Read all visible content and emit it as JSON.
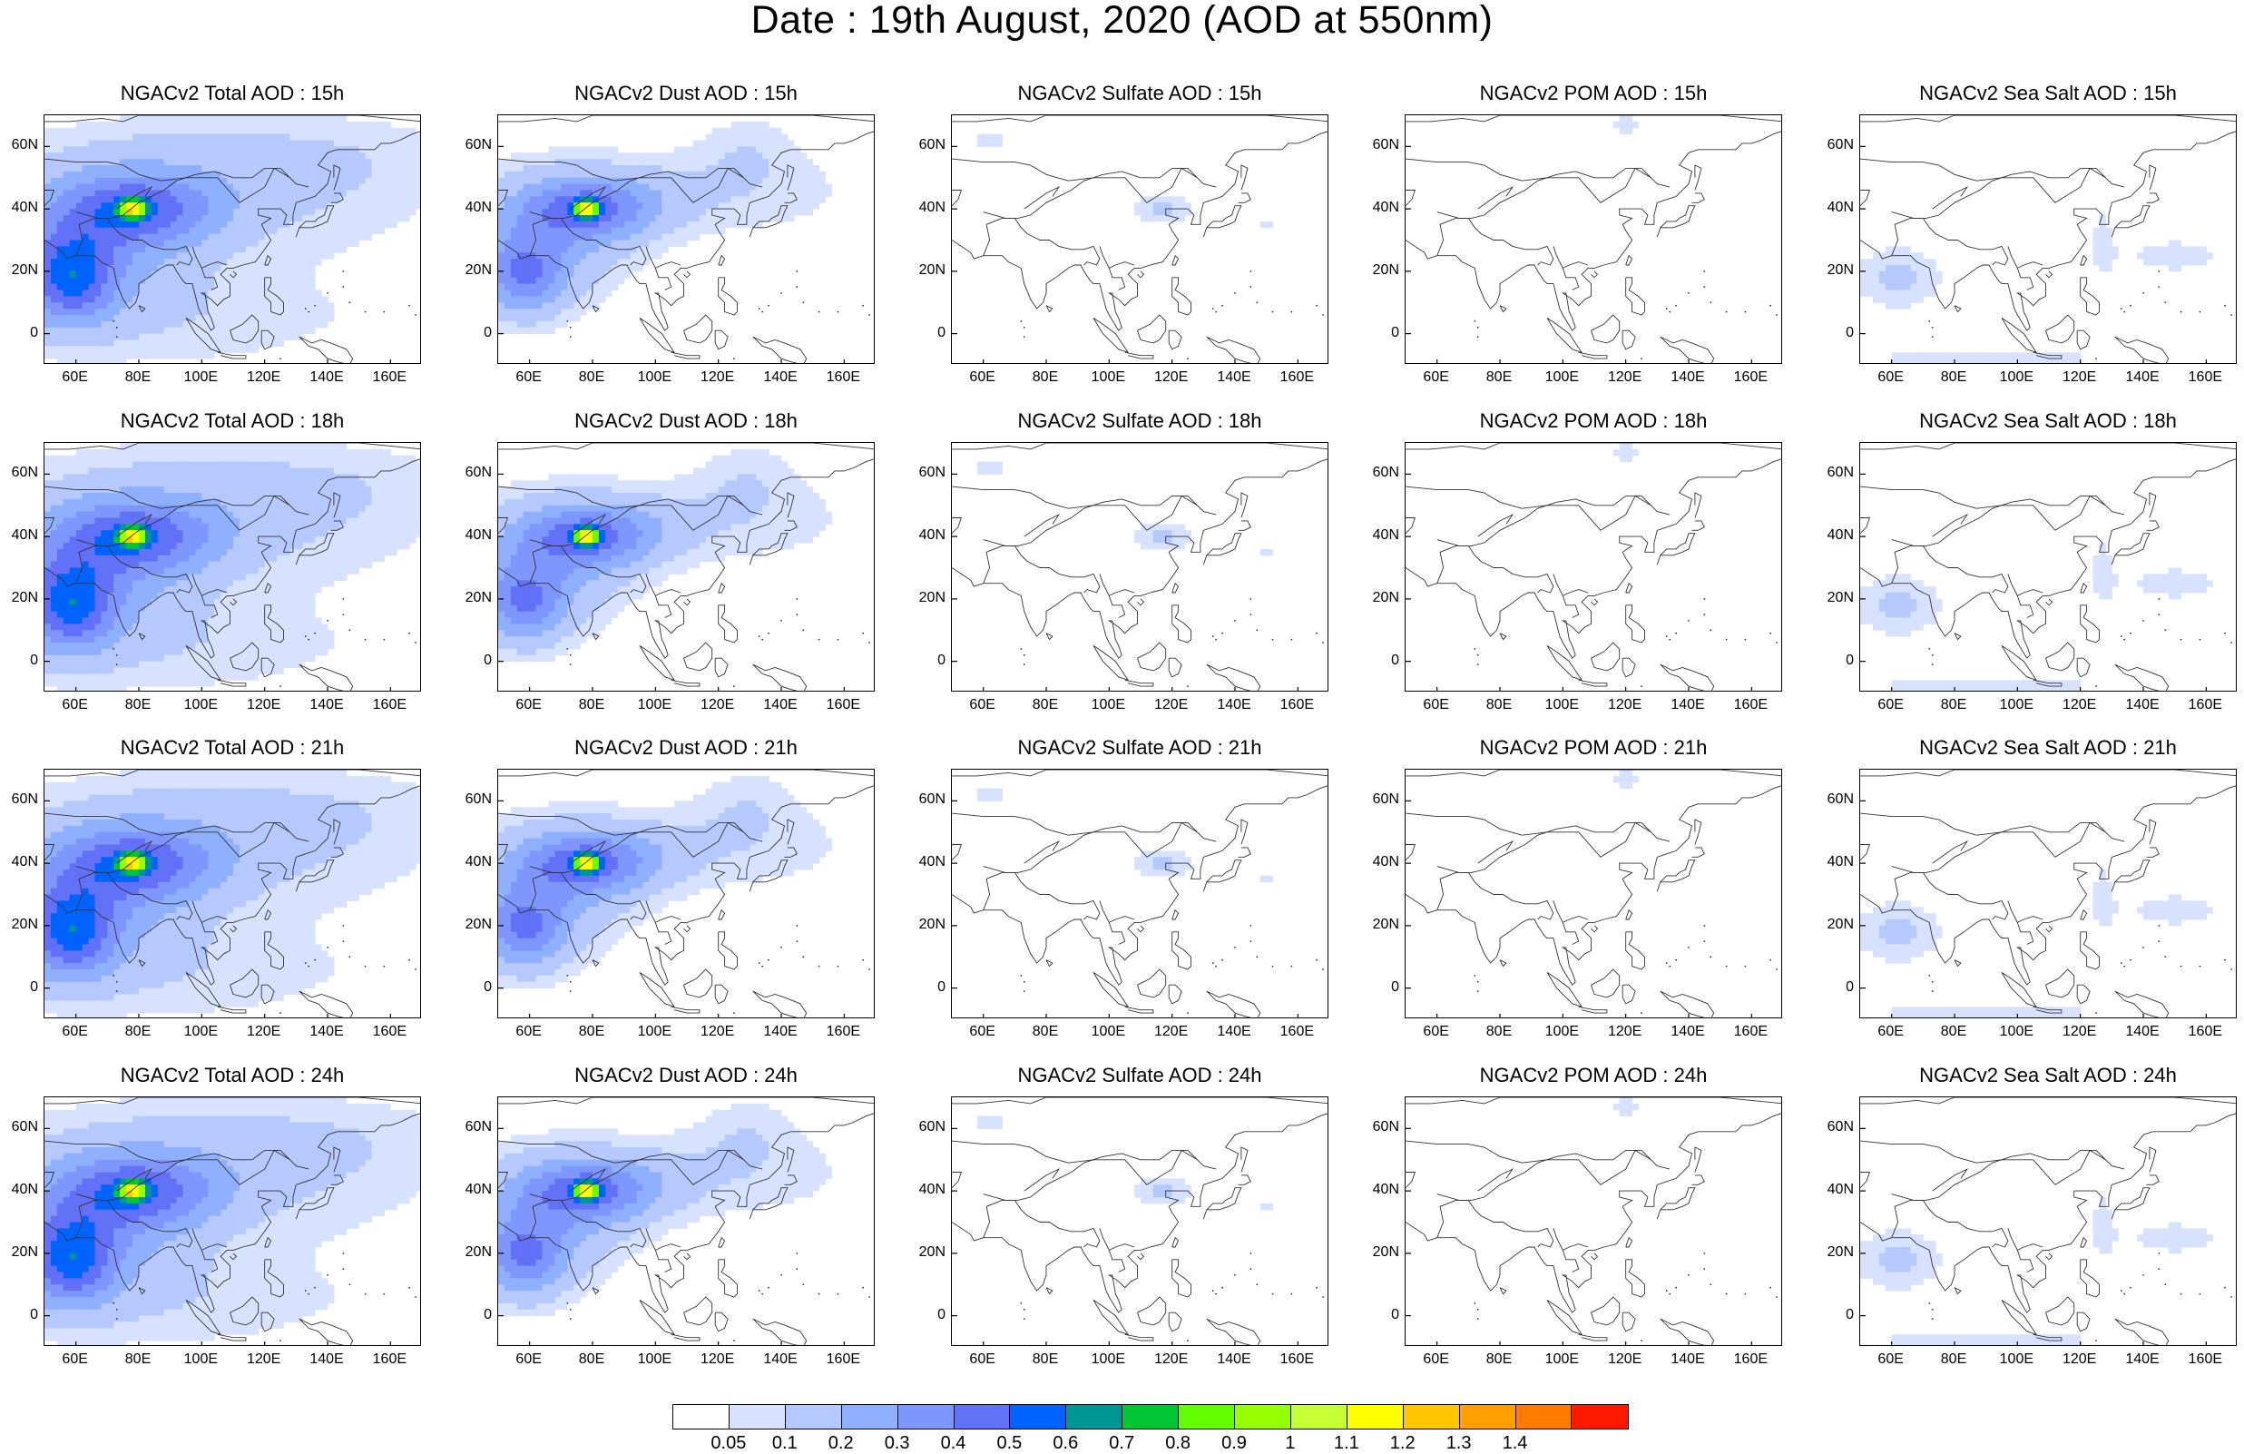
{
  "main_title": "Date : 19th August, 2020 (AOD at 550nm)",
  "ytick_labels": [
    "60N",
    "40N",
    "20N",
    "0"
  ],
  "xtick_labels": [
    "60E",
    "80E",
    "100E",
    "120E",
    "140E",
    "160E"
  ],
  "panels": [
    {
      "title": "NGACv2 Total AOD : 15h",
      "species": "total",
      "hour": "15h"
    },
    {
      "title": "NGACv2 Dust AOD : 15h",
      "species": "dust",
      "hour": "15h"
    },
    {
      "title": "NGACv2 Sulfate AOD : 15h",
      "species": "sulfate",
      "hour": "15h"
    },
    {
      "title": "NGACv2 POM AOD : 15h",
      "species": "pom",
      "hour": "15h"
    },
    {
      "title": "NGACv2 Sea Salt AOD : 15h",
      "species": "seasalt",
      "hour": "15h"
    },
    {
      "title": "NGACv2 Total AOD : 18h",
      "species": "total",
      "hour": "18h"
    },
    {
      "title": "NGACv2 Dust AOD : 18h",
      "species": "dust",
      "hour": "18h"
    },
    {
      "title": "NGACv2 Sulfate AOD : 18h",
      "species": "sulfate",
      "hour": "18h"
    },
    {
      "title": "NGACv2 POM AOD : 18h",
      "species": "pom",
      "hour": "18h"
    },
    {
      "title": "NGACv2 Sea Salt AOD : 18h",
      "species": "seasalt",
      "hour": "18h"
    },
    {
      "title": "NGACv2 Total AOD : 21h",
      "species": "total",
      "hour": "21h"
    },
    {
      "title": "NGACv2 Dust AOD : 21h",
      "species": "dust",
      "hour": "21h"
    },
    {
      "title": "NGACv2 Sulfate AOD : 21h",
      "species": "sulfate",
      "hour": "21h"
    },
    {
      "title": "NGACv2 POM AOD : 21h",
      "species": "pom",
      "hour": "21h"
    },
    {
      "title": "NGACv2 Sea Salt AOD : 21h",
      "species": "seasalt",
      "hour": "21h"
    },
    {
      "title": "NGACv2 Total AOD : 24h",
      "species": "total",
      "hour": "24h"
    },
    {
      "title": "NGACv2 Dust AOD : 24h",
      "species": "dust",
      "hour": "24h"
    },
    {
      "title": "NGACv2 Sulfate AOD : 24h",
      "species": "sulfate",
      "hour": "24h"
    },
    {
      "title": "NGACv2 POM AOD : 24h",
      "species": "pom",
      "hour": "24h"
    },
    {
      "title": "NGACv2 Sea Salt  AOD : 24h",
      "species": "seasalt",
      "hour": "24h"
    }
  ],
  "colorbar": {
    "labels": [
      "0.05",
      "0.1",
      "0.2",
      "0.3",
      "0.4",
      "0.5",
      "0.6",
      "0.7",
      "0.8",
      "0.9",
      "1",
      "1.1",
      "1.2",
      "1.3",
      "1.4"
    ],
    "colors": [
      "#ffffff",
      "#d6e2ff",
      "#b5c9ff",
      "#8fb0ff",
      "#7f96ff",
      "#6370f8",
      "#0063ff",
      "#009696",
      "#00c633",
      "#63ff00",
      "#96ff00",
      "#c6ff33",
      "#ffff00",
      "#ffc600",
      "#ffa000",
      "#ff7c00",
      "#ff1900"
    ]
  },
  "chart_data": {
    "type": "heatmap",
    "layout": "4 rows (15h, 18h, 21h, 24h) x 5 columns (Total, Dust, Sulfate, POM, Sea Salt)",
    "lon_range": [
      50,
      170
    ],
    "lat_range": [
      -10,
      70
    ],
    "variable": "AOD at 550nm",
    "levels": [
      0.05,
      0.1,
      0.2,
      0.3,
      0.4,
      0.5,
      0.6,
      0.7,
      0.8,
      0.9,
      1,
      1.1,
      1.2,
      1.3,
      1.4
    ],
    "colors": [
      "#ffffff",
      "#d6e2ff",
      "#b5c9ff",
      "#8fb0ff",
      "#7f96ff",
      "#6370f8",
      "#0063ff",
      "#009696",
      "#00c633",
      "#63ff00",
      "#96ff00",
      "#c6ff33",
      "#ffff00",
      "#ffc600",
      "#ffa000",
      "#ff7c00",
      "#ff1900"
    ],
    "fields": {
      "total": [
        {
          "lon": 58,
          "lat": 18,
          "aod": 0.4,
          "sx": 10,
          "sy": 10
        },
        {
          "lon": 78,
          "lat": 40,
          "aod": 0.8,
          "sx": 3,
          "sy": 2
        },
        {
          "lon": 80,
          "lat": 40,
          "aod": 0.3,
          "sx": 18,
          "sy": 8
        },
        {
          "lon": 65,
          "lat": 30,
          "aod": 0.2,
          "sx": 22,
          "sy": 16
        },
        {
          "lon": 110,
          "lat": 42,
          "aod": 0.1,
          "sx": 45,
          "sy": 14
        },
        {
          "lon": 90,
          "lat": 5,
          "aod": 0.08,
          "sx": 50,
          "sy": 12
        },
        {
          "lon": 120,
          "lat": 58,
          "aod": 0.08,
          "sx": 50,
          "sy": 10
        }
      ],
      "dust": [
        {
          "lon": 58,
          "lat": 18,
          "aod": 0.3,
          "sx": 9,
          "sy": 9
        },
        {
          "lon": 78,
          "lat": 40,
          "aod": 0.8,
          "sx": 2.5,
          "sy": 1.8
        },
        {
          "lon": 80,
          "lat": 40,
          "aod": 0.3,
          "sx": 15,
          "sy": 7
        },
        {
          "lon": 65,
          "lat": 30,
          "aod": 0.2,
          "sx": 18,
          "sy": 14
        },
        {
          "lon": 108,
          "lat": 45,
          "aod": 0.1,
          "sx": 40,
          "sy": 10
        },
        {
          "lon": 130,
          "lat": 60,
          "aod": 0.07,
          "sx": 12,
          "sy": 8
        }
      ],
      "sulfate": [
        {
          "lon": 117,
          "lat": 40,
          "aod": 0.12,
          "sx": 7,
          "sy": 3
        },
        {
          "lon": 62,
          "lat": 62,
          "aod": 0.06,
          "sx": 6,
          "sy": 3
        },
        {
          "lon": 150,
          "lat": 35,
          "aod": 0.06,
          "sx": 4,
          "sy": 2
        }
      ],
      "pom": [
        {
          "lon": 120,
          "lat": 67,
          "aod": 0.07,
          "sx": 6,
          "sy": 2.5
        }
      ],
      "seasalt": [
        {
          "lon": 62,
          "lat": 18,
          "aod": 0.12,
          "sx": 10,
          "sy": 7
        },
        {
          "lon": 150,
          "lat": 25,
          "aod": 0.07,
          "sx": 15,
          "sy": 5
        },
        {
          "lon": 90,
          "lat": -8,
          "aod": 0.07,
          "sx": 40,
          "sy": 3
        },
        {
          "lon": 127,
          "lat": 30,
          "aod": 0.06,
          "sx": 3,
          "sy": 12
        }
      ]
    }
  }
}
